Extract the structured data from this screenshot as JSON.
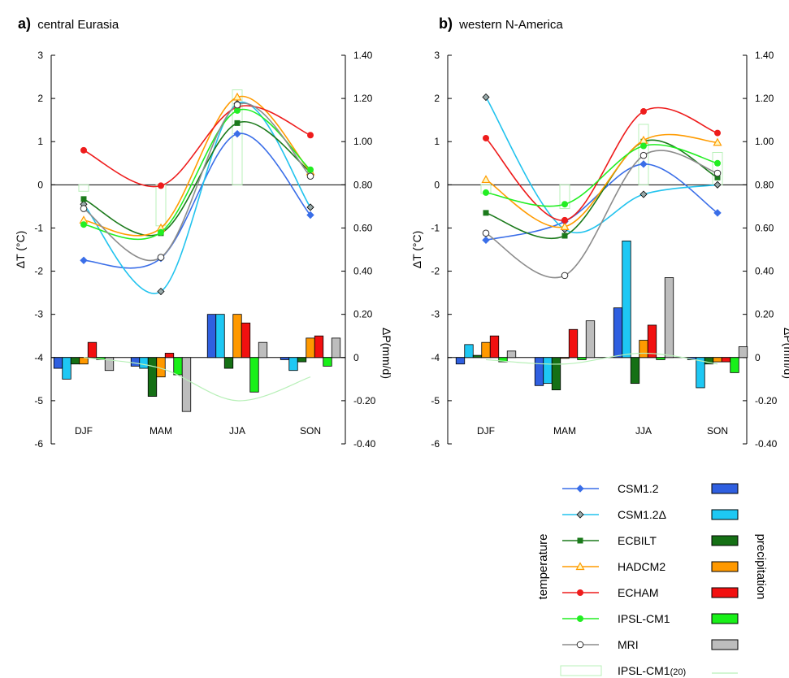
{
  "panels_text": [
    {
      "letter": "a)",
      "title": "central Eurasia"
    },
    {
      "letter": "b)",
      "title": "western N-America"
    }
  ],
  "legend": {
    "left_label": "temperature",
    "right_label": "precipitation",
    "items": [
      {
        "name": "CSM1.2",
        "color": "#3a6ee8",
        "marker": "diamond",
        "bar_color": "#2f5fe0"
      },
      {
        "name": "CSM1.2Δ",
        "color": "#22c3ee",
        "marker": "diamond-gray",
        "bar_color": "#1ec8f4"
      },
      {
        "name": "ECBILT",
        "color": "#1b7a1b",
        "marker": "square",
        "bar_color": "#157015"
      },
      {
        "name": "HADCM2",
        "color": "#ff9b00",
        "marker": "triangle",
        "bar_color": "#ff9900"
      },
      {
        "name": "ECHAM",
        "color": "#ee1c1c",
        "marker": "circle",
        "bar_color": "#f21010"
      },
      {
        "name": "IPSL-CM1",
        "color": "#22ee22",
        "marker": "circle",
        "bar_color": "#19f019"
      },
      {
        "name": "MRI",
        "color": "#8c8c8c",
        "marker": "circle-open",
        "bar_color": "#bdbdbd"
      },
      {
        "name": "IPSL-CM1",
        "sub": "(20)",
        "color": "#b8f0b8",
        "marker": "none",
        "bar_color": "#ffffff"
      }
    ]
  },
  "chart_data": [
    {
      "type": "line",
      "panel": "a",
      "title": "central Eurasia",
      "categories": [
        "DJF",
        "MAM",
        "JJA",
        "SON"
      ],
      "ylabel": "ΔT (°C)",
      "y2label": "ΔP(mm/d)",
      "ylim": [
        -6,
        3
      ],
      "y2lim": [
        -0.4,
        1.4
      ],
      "y_ticks": [
        "3",
        "2",
        "1",
        "0",
        "-1",
        "-2",
        "-3",
        "-4",
        "-5",
        "-6"
      ],
      "y2_ticks": [
        "1.40",
        "1.20",
        "1.00",
        "0.80",
        "0.60",
        "0.40",
        "0.20",
        "0",
        "-0.20",
        "-0.40"
      ],
      "temperature": [
        {
          "name": "CSM1.2",
          "values": [
            -1.75,
            -1.7,
            1.18,
            -0.7
          ]
        },
        {
          "name": "CSM1.2Δ",
          "values": [
            -0.45,
            -2.47,
            1.88,
            -0.52
          ]
        },
        {
          "name": "ECBILT",
          "values": [
            -0.33,
            -1.12,
            1.43,
            0.3
          ]
        },
        {
          "name": "HADCM2",
          "values": [
            -0.82,
            -1.0,
            2.03,
            0.3
          ]
        },
        {
          "name": "ECHAM",
          "values": [
            0.8,
            -0.02,
            1.8,
            1.15
          ]
        },
        {
          "name": "IPSL-CM1",
          "values": [
            -0.92,
            -1.1,
            1.72,
            0.35
          ]
        },
        {
          "name": "MRI",
          "values": [
            -0.55,
            -1.68,
            1.85,
            0.2
          ]
        }
      ],
      "precipitation": [
        {
          "name": "CSM1.2",
          "values": [
            -0.05,
            -0.04,
            0.2,
            -0.01
          ]
        },
        {
          "name": "CSM1.2Δ",
          "values": [
            -0.1,
            -0.05,
            0.2,
            -0.06
          ]
        },
        {
          "name": "ECBILT",
          "values": [
            -0.03,
            -0.18,
            -0.05,
            -0.02
          ]
        },
        {
          "name": "HADCM2",
          "values": [
            -0.03,
            -0.09,
            0.2,
            0.09
          ]
        },
        {
          "name": "ECHAM",
          "values": [
            0.07,
            0.02,
            0.16,
            0.1
          ]
        },
        {
          "name": "IPSL-CM1",
          "values": [
            -0.01,
            -0.08,
            -0.16,
            -0.04
          ]
        },
        {
          "name": "MRI",
          "values": [
            -0.06,
            -0.25,
            0.07,
            0.09
          ]
        },
        {
          "name": "IPSL-CM1(20)",
          "values": [
            0.77,
            0.61,
            1.24,
            0.8
          ]
        }
      ],
      "ipsl20_line": [
        0.0,
        -0.05,
        -0.2,
        -0.09
      ]
    },
    {
      "type": "line",
      "panel": "b",
      "title": "western N-America",
      "categories": [
        "DJF",
        "MAM",
        "JJA",
        "SON"
      ],
      "ylabel": "ΔT (°C)",
      "y2label": "ΔP(mm/d)",
      "ylim": [
        -6,
        3
      ],
      "y2lim": [
        -0.4,
        1.4
      ],
      "y_ticks": [
        "3",
        "2",
        "1",
        "0",
        "-1",
        "-2",
        "-3",
        "-4",
        "-5",
        "-6"
      ],
      "y2_ticks": [
        "1.40",
        "1.20",
        "1.00",
        "0.80",
        "0.60",
        "0.40",
        "0.20",
        "0",
        "-0.20",
        "-0.40"
      ],
      "temperature": [
        {
          "name": "CSM1.2",
          "values": [
            -1.28,
            -0.85,
            0.48,
            -0.65
          ]
        },
        {
          "name": "CSM1.2Δ",
          "values": [
            2.03,
            -1.03,
            -0.22,
            0.0
          ]
        },
        {
          "name": "ECBILT",
          "values": [
            -0.65,
            -1.18,
            1.0,
            0.17
          ]
        },
        {
          "name": "HADCM2",
          "values": [
            0.12,
            -0.97,
            1.03,
            0.98
          ]
        },
        {
          "name": "ECHAM",
          "values": [
            1.08,
            -0.82,
            1.7,
            1.2
          ]
        },
        {
          "name": "IPSL-CM1",
          "values": [
            -0.18,
            -0.45,
            0.9,
            0.5
          ]
        },
        {
          "name": "MRI",
          "values": [
            -1.12,
            -2.1,
            0.68,
            0.27
          ]
        }
      ],
      "precipitation": [
        {
          "name": "CSM1.2",
          "values": [
            -0.03,
            -0.13,
            0.23,
            -0.01
          ]
        },
        {
          "name": "CSM1.2Δ",
          "values": [
            0.06,
            -0.12,
            0.54,
            -0.14
          ]
        },
        {
          "name": "ECBILT",
          "values": [
            0.01,
            -0.15,
            -0.12,
            -0.03
          ]
        },
        {
          "name": "HADCM2",
          "values": [
            0.07,
            0.0,
            0.08,
            -0.02
          ]
        },
        {
          "name": "ECHAM",
          "values": [
            0.1,
            0.13,
            0.15,
            -0.02
          ]
        },
        {
          "name": "IPSL-CM1",
          "values": [
            -0.02,
            -0.01,
            -0.01,
            -0.07
          ]
        },
        {
          "name": "MRI",
          "values": [
            0.03,
            0.17,
            0.37,
            0.05
          ]
        },
        {
          "name": "IPSL-CM1(20)",
          "values": [
            0.76,
            0.69,
            1.08,
            0.95
          ]
        }
      ],
      "ipsl20_line": [
        -0.01,
        -0.03,
        0.02,
        -0.03
      ]
    }
  ]
}
